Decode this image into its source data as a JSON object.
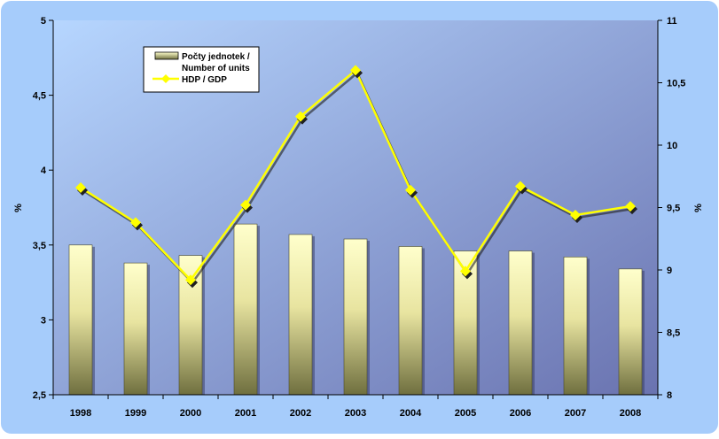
{
  "chart_data": {
    "type": "bar",
    "categories": [
      "1998",
      "1999",
      "2000",
      "2001",
      "2002",
      "2003",
      "2004",
      "2005",
      "2006",
      "2007",
      "2008"
    ],
    "series": [
      {
        "name": "Počty jednotek / Number of units",
        "type": "bar",
        "axis": "left",
        "values": [
          3.5,
          3.38,
          3.43,
          3.64,
          3.57,
          3.54,
          3.49,
          3.46,
          3.46,
          3.42,
          3.34
        ]
      },
      {
        "name": "HDP / GDP",
        "type": "line",
        "axis": "right",
        "values": [
          9.66,
          9.38,
          8.92,
          9.52,
          10.23,
          10.6,
          9.64,
          8.99,
          9.67,
          9.44,
          9.51
        ]
      }
    ],
    "y_left": {
      "label": "%",
      "ylim": [
        2.5,
        5
      ],
      "ticks": [
        "2,5",
        "3",
        "3,5",
        "4",
        "4,5",
        "5"
      ]
    },
    "y_right": {
      "label": "%",
      "ylim": [
        8,
        11
      ],
      "ticks": [
        "8",
        "8,5",
        "9",
        "9,5",
        "10",
        "10,5",
        "11"
      ]
    },
    "legend": {
      "placement": "top-left",
      "items": [
        {
          "label_line1": "Počty jednotek /",
          "label_line2": "Number of units"
        },
        {
          "label_line1": "HDP / GDP"
        }
      ]
    },
    "colors": {
      "background": "#a6ccfb",
      "plot_gradient_start": "#b6d6ff",
      "plot_gradient_end": "#6a73b0",
      "bar_light": "#ffffcc",
      "bar_dark": "#6f6f3f",
      "line": "#ffff00",
      "marker_shadow": "#202020"
    }
  }
}
